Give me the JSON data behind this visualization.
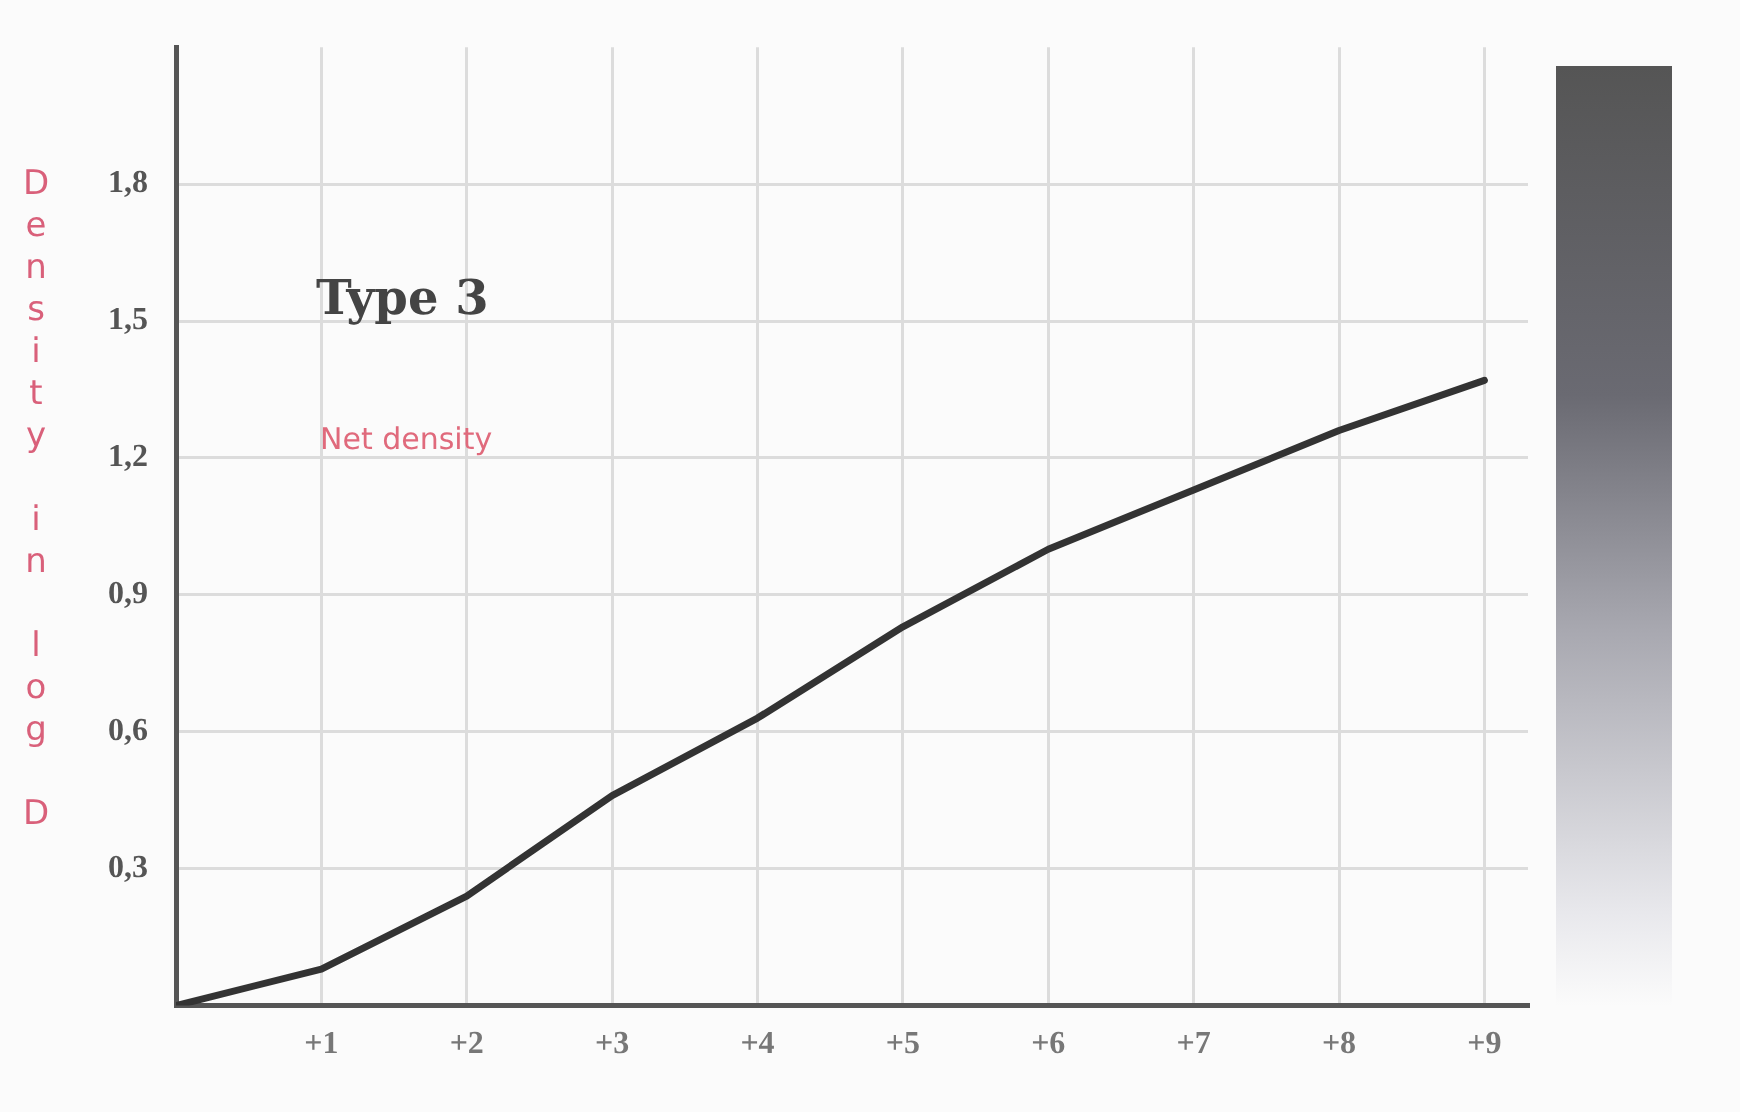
{
  "chart_data": {
    "type": "line",
    "title": "Type 3",
    "ylabel": "Density in log D",
    "annotations": [
      "Net density"
    ],
    "x": [
      0,
      1,
      2,
      3,
      4,
      5,
      6,
      7,
      8,
      9
    ],
    "series": [
      {
        "color": "#333333",
        "values": [
          0,
          0.08,
          0.24,
          0.46,
          0.63,
          0.83,
          1.0,
          1.13,
          1.26,
          1.37
        ]
      }
    ],
    "xlim": [
      0,
      9.3
    ],
    "xticks": [
      {
        "value": 0,
        "label": null
      },
      {
        "value": 1,
        "label": "+1"
      },
      {
        "value": 2,
        "label": "+2"
      },
      {
        "value": 3,
        "label": "+3"
      },
      {
        "value": 4,
        "label": "+4"
      },
      {
        "value": 5,
        "label": "+5"
      },
      {
        "value": 6,
        "label": "+6"
      },
      {
        "value": 7,
        "label": "+7"
      },
      {
        "value": 8,
        "label": "+8"
      },
      {
        "value": 9,
        "label": "+9"
      }
    ],
    "ylim": [
      0,
      2.1
    ],
    "yticks": [
      {
        "value": 0,
        "label": null
      },
      {
        "value": 0.3,
        "label": "0,3"
      },
      {
        "value": 0.6,
        "label": "0,6"
      },
      {
        "value": 0.9,
        "label": "0,9"
      },
      {
        "value": 1.2,
        "label": "1,2"
      },
      {
        "value": 1.5,
        "label": "1,5"
      },
      {
        "value": 1.8,
        "label": "1,8"
      }
    ],
    "grid": true,
    "legend": false,
    "marker": "none",
    "line_style": "solid"
  }
}
